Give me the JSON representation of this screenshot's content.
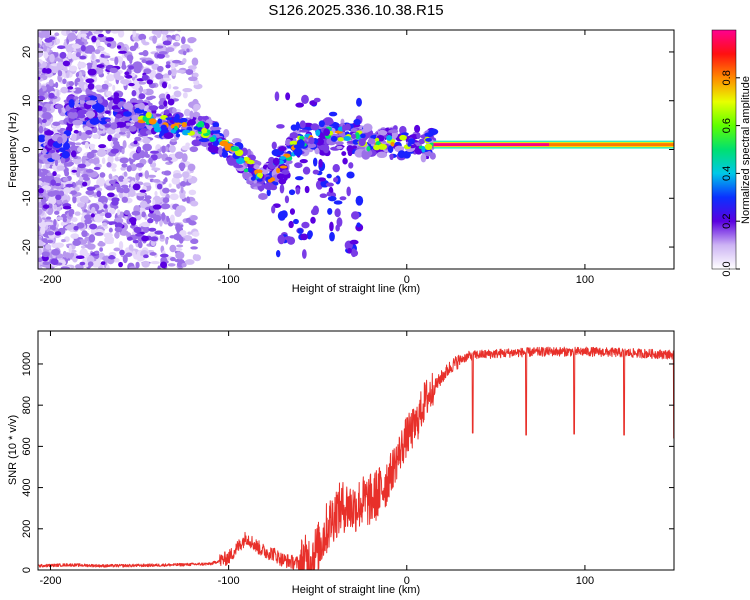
{
  "title": "S126.2025.336.10.38.R15",
  "chart_data": [
    {
      "type": "heatmap",
      "name": "spectrogram",
      "xlabel": "Height of straight line (km)",
      "ylabel": "Frequency (Hz)",
      "xlim": [
        -207,
        150
      ],
      "ylim": [
        -24.5,
        24.5
      ],
      "xticks": [
        -200,
        -100,
        0,
        100
      ],
      "yticks": [
        -20,
        -10,
        0,
        10,
        20
      ],
      "colorbar": {
        "label": "Normalized spectral amplitude",
        "range": [
          0,
          1
        ],
        "ticks": [
          0.0,
          0.2,
          0.4,
          0.6,
          0.8
        ],
        "tick_labels": [
          "0.0",
          "0.2",
          "0.4",
          "0.6",
          "0.8"
        ]
      },
      "ridge": [
        {
          "x": -190,
          "f": 8
        },
        {
          "x": -170,
          "f": 8
        },
        {
          "x": -150,
          "f": 6
        },
        {
          "x": -130,
          "f": 5
        },
        {
          "x": -115,
          "f": 4
        },
        {
          "x": -100,
          "f": 1
        },
        {
          "x": -90,
          "f": -3
        },
        {
          "x": -80,
          "f": -7
        },
        {
          "x": -60,
          "f": 2
        },
        {
          "x": -40,
          "f": 3
        },
        {
          "x": -20,
          "f": 1.5
        },
        {
          "x": 0,
          "f": 1.5
        },
        {
          "x": 15,
          "f": 1
        },
        {
          "x": 80,
          "f": 1
        },
        {
          "x": 150,
          "f": 0.5
        }
      ]
    },
    {
      "type": "line",
      "name": "snr",
      "xlabel": "Height of straight line (km)",
      "ylabel": "SNR (10 * v/v)",
      "xlim": [
        -207,
        150
      ],
      "ylim": [
        0,
        1160
      ],
      "xticks": [
        -200,
        -100,
        0,
        100
      ],
      "yticks": [
        0,
        200,
        400,
        600,
        800,
        1000
      ],
      "series": [
        {
          "name": "SNR",
          "color": "#e8302a",
          "x": [
            -207,
            -190,
            -170,
            -150,
            -130,
            -110,
            -100,
            -95,
            -90,
            -85,
            -80,
            -75,
            -70,
            -65,
            -60,
            -55,
            -50,
            -45,
            -40,
            -35,
            -30,
            -25,
            -20,
            -15,
            -10,
            -5,
            0,
            5,
            10,
            15,
            20,
            25,
            30,
            35,
            40,
            50,
            60,
            80,
            100,
            120,
            150
          ],
          "values": [
            20,
            25,
            20,
            22,
            25,
            30,
            60,
            110,
            160,
            120,
            90,
            80,
            50,
            40,
            30,
            50,
            100,
            200,
            280,
            310,
            300,
            330,
            340,
            380,
            450,
            550,
            650,
            700,
            820,
            880,
            940,
            990,
            1020,
            1040,
            1045,
            1050,
            1055,
            1060,
            1060,
            1055,
            1045
          ]
        }
      ],
      "annotations": [
        {
          "x": 37,
          "dip_to": 665
        },
        {
          "x": 67,
          "dip_to": 655
        },
        {
          "x": 94,
          "dip_to": 660
        },
        {
          "x": 122,
          "dip_to": 655
        },
        {
          "x": 150,
          "dip_to": 640
        }
      ]
    }
  ]
}
